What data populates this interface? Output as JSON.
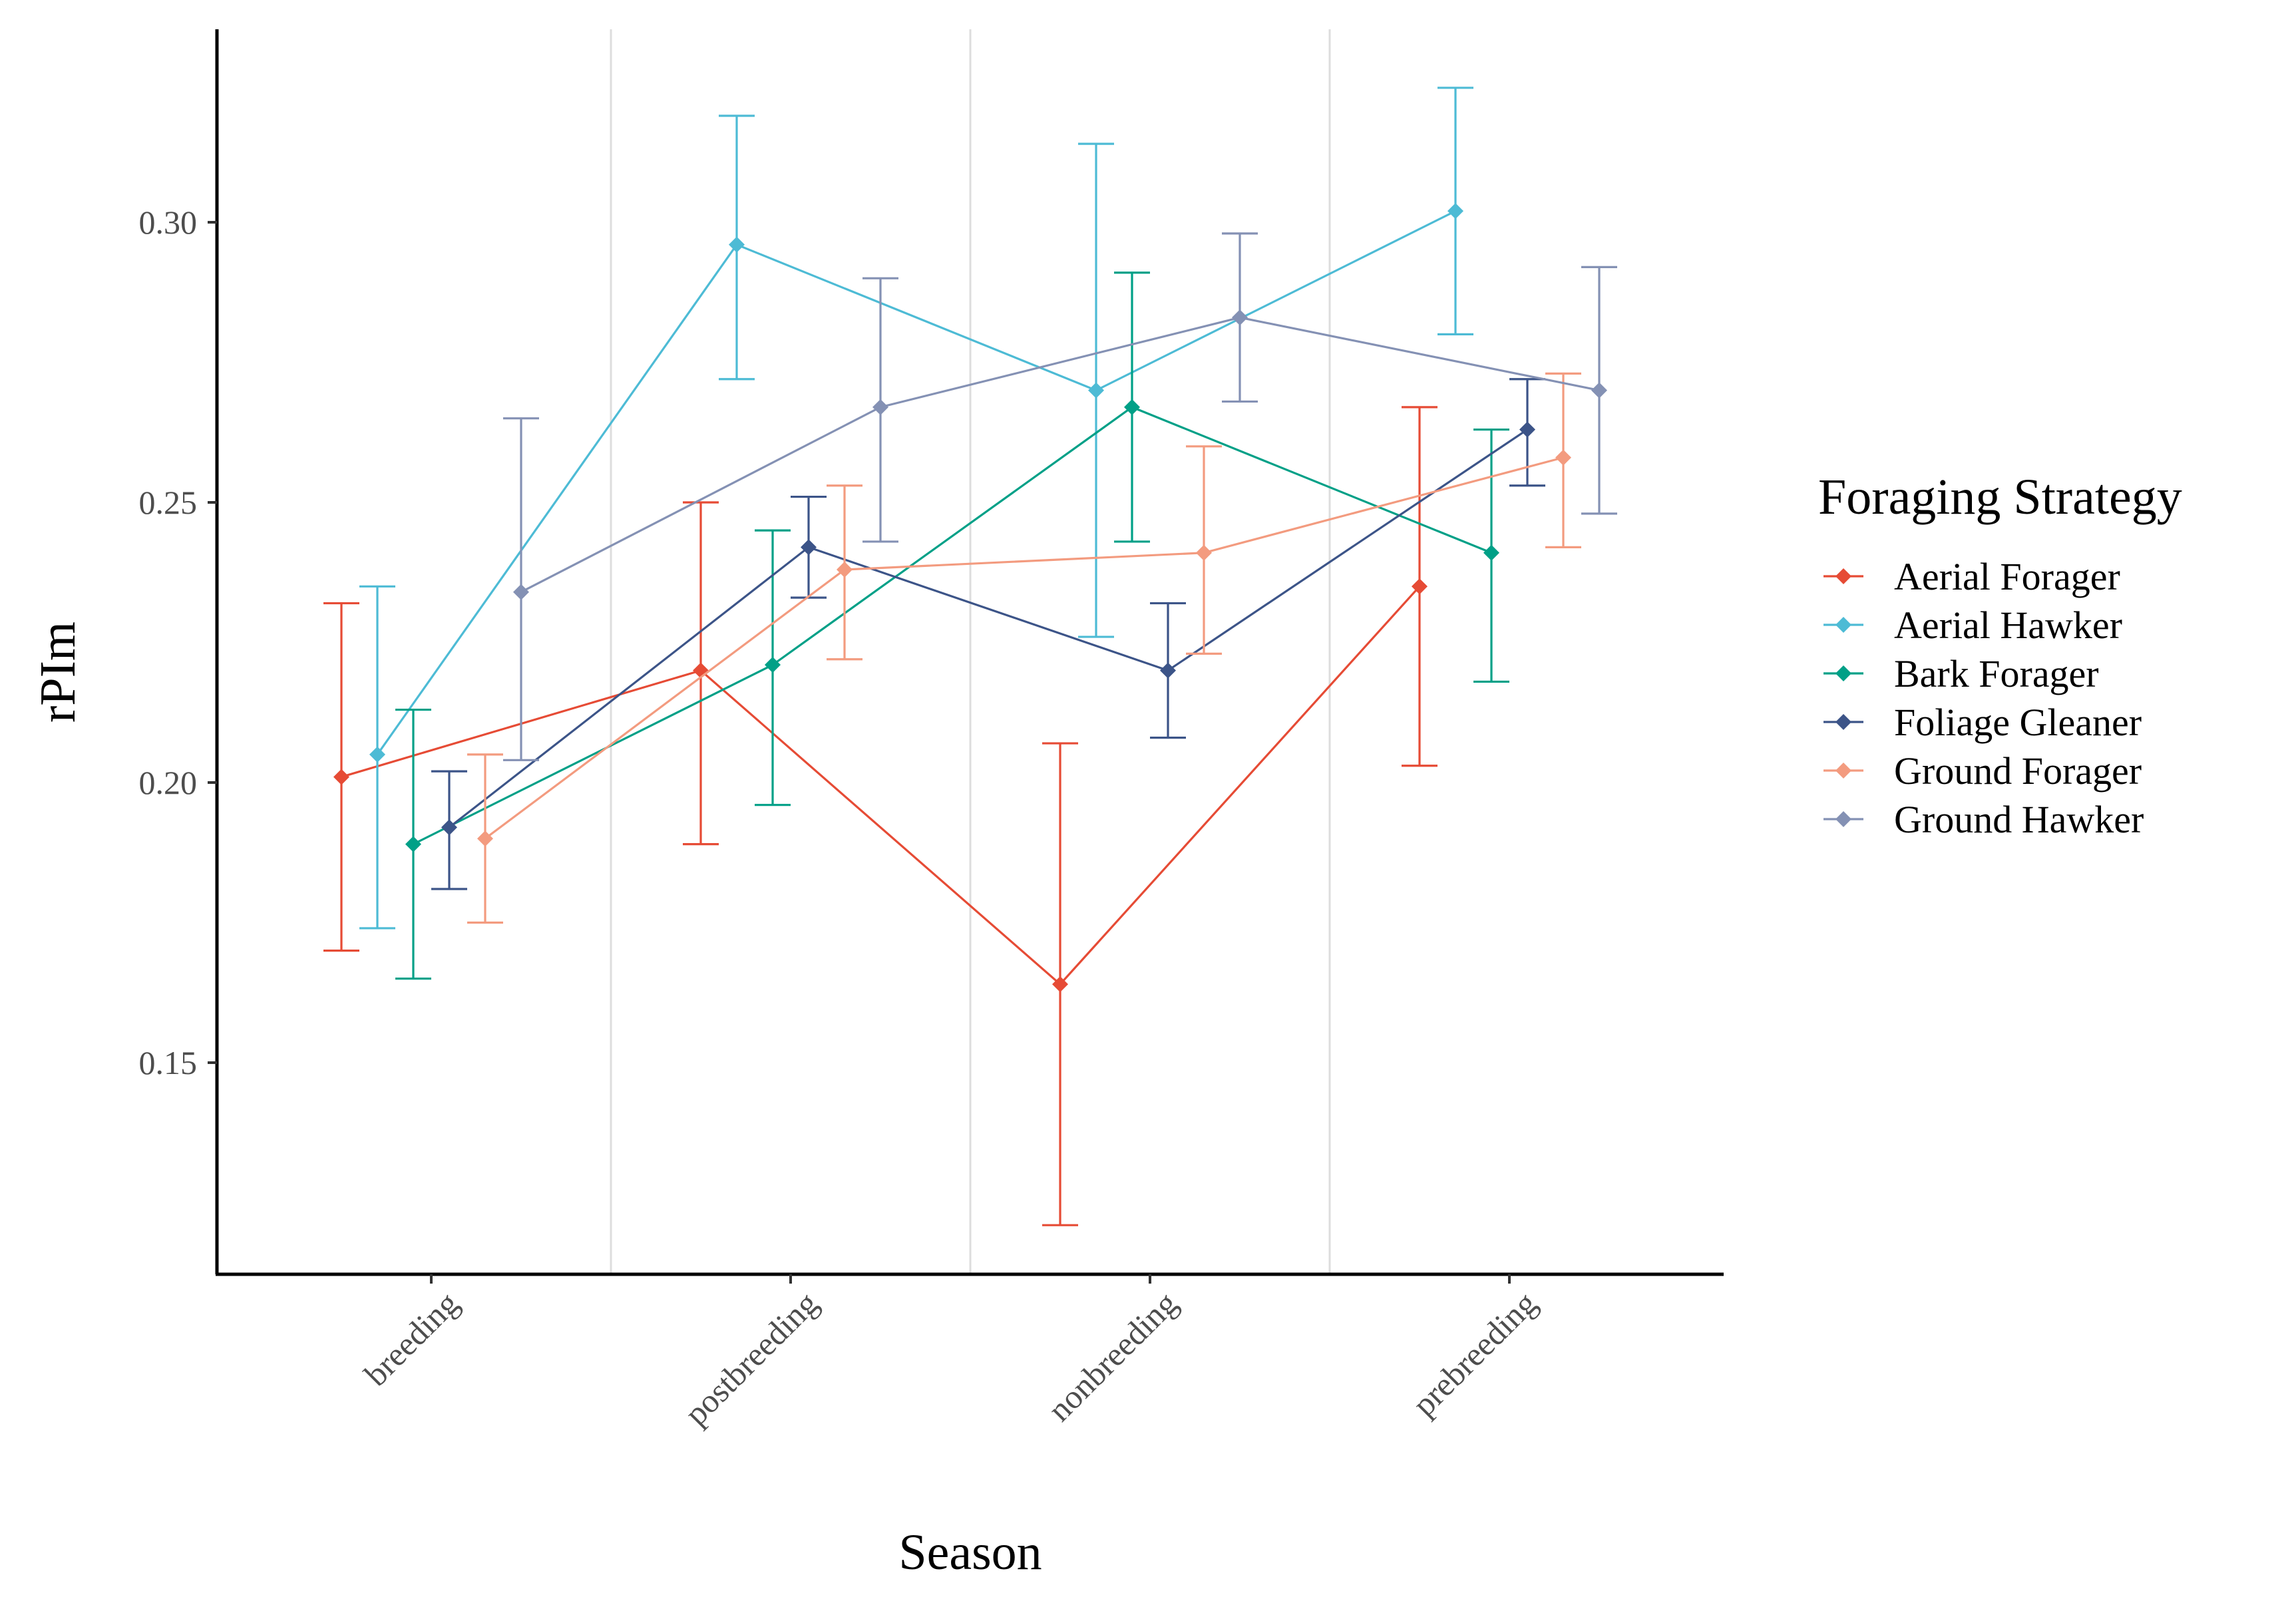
{
  "chart_data": {
    "type": "line",
    "title": "",
    "xlabel": "Season",
    "ylabel": "rPIm",
    "categories": [
      "breeding",
      "postbreeding",
      "nonbreeding",
      "prebreeding"
    ],
    "ylim": [
      0.11,
      0.335
    ],
    "yticks": [
      0.15,
      0.2,
      0.25,
      0.3
    ],
    "ytick_labels": [
      "0.15",
      "0.20",
      "0.25",
      "0.30"
    ],
    "grid": "vertical lines between seasons",
    "legend": {
      "title": "Foraging Strategy",
      "placement": "right"
    },
    "series": [
      {
        "name": "Aerial Forager",
        "color": "#E64B35",
        "values": [
          0.201,
          0.22,
          0.164,
          0.235
        ],
        "lower": [
          0.17,
          0.189,
          0.121,
          0.203
        ],
        "upper": [
          0.232,
          0.25,
          0.207,
          0.267
        ]
      },
      {
        "name": "Aerial Hawker",
        "color": "#4DBBD5",
        "values": [
          0.205,
          0.296,
          0.27,
          0.302
        ],
        "lower": [
          0.174,
          0.272,
          0.226,
          0.28
        ],
        "upper": [
          0.235,
          0.319,
          0.314,
          0.324
        ]
      },
      {
        "name": "Bark Forager",
        "color": "#00A087",
        "values": [
          0.189,
          0.221,
          0.267,
          0.241
        ],
        "lower": [
          0.165,
          0.196,
          0.243,
          0.218
        ],
        "upper": [
          0.213,
          0.245,
          0.291,
          0.263
        ]
      },
      {
        "name": "Foliage Gleaner",
        "color": "#3C5488",
        "values": [
          0.192,
          0.242,
          0.22,
          0.263
        ],
        "lower": [
          0.181,
          0.233,
          0.208,
          0.253
        ],
        "upper": [
          0.202,
          0.251,
          0.232,
          0.272
        ]
      },
      {
        "name": "Ground Forager",
        "color": "#F39B7F",
        "values": [
          0.19,
          0.238,
          0.241,
          0.258
        ],
        "lower": [
          0.175,
          0.222,
          0.223,
          0.242
        ],
        "upper": [
          0.205,
          0.253,
          0.26,
          0.273
        ]
      },
      {
        "name": "Ground Hawker",
        "color": "#8491B4",
        "values": [
          0.234,
          0.267,
          0.283,
          0.27
        ],
        "lower": [
          0.204,
          0.243,
          0.268,
          0.248
        ],
        "upper": [
          0.265,
          0.29,
          0.298,
          0.292
        ]
      }
    ]
  }
}
